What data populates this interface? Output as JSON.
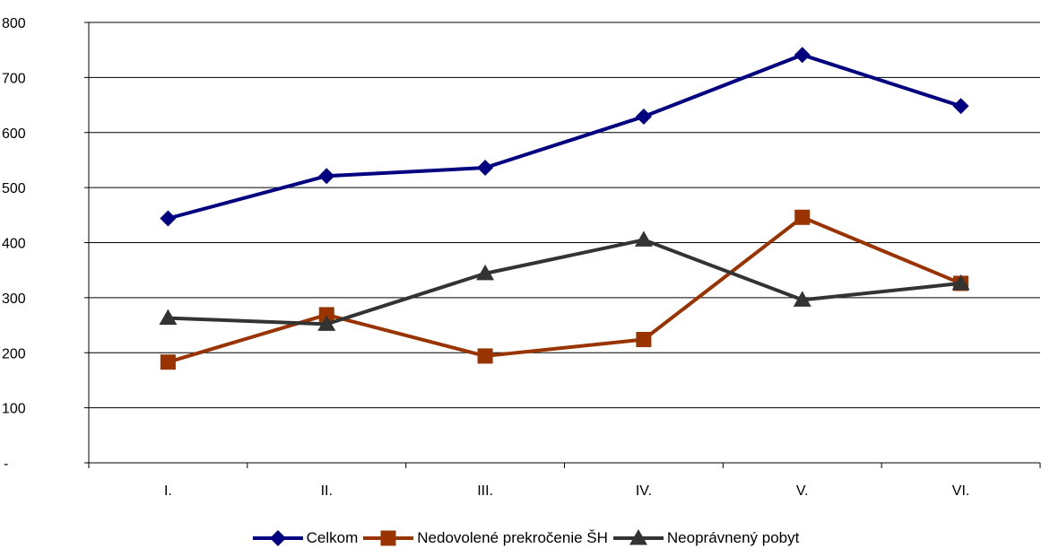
{
  "chart_data": {
    "type": "line",
    "title": "",
    "xlabel": "",
    "ylabel": "",
    "categories": [
      "I.",
      "II.",
      "III.",
      "IV.",
      "V.",
      "VI."
    ],
    "y_ticks": [
      "-",
      "100",
      "200",
      "300",
      "400",
      "500",
      "600",
      "700",
      "800"
    ],
    "ylim": [
      0,
      800
    ],
    "grid": "horizontal",
    "legend_position": "bottom",
    "series": [
      {
        "name": "Celkom",
        "values": [
          444,
          521,
          536,
          629,
          741,
          648
        ],
        "color": "#000080",
        "marker": "diamond"
      },
      {
        "name": "Nedovolené prekročenie ŠH",
        "values": [
          183,
          269,
          194,
          224,
          446,
          326
        ],
        "color": "#993300",
        "marker": "square"
      },
      {
        "name": "Neoprávnený pobyt",
        "values": [
          263,
          252,
          344,
          405,
          296,
          326
        ],
        "color": "#333333",
        "marker": "triangle"
      }
    ]
  }
}
